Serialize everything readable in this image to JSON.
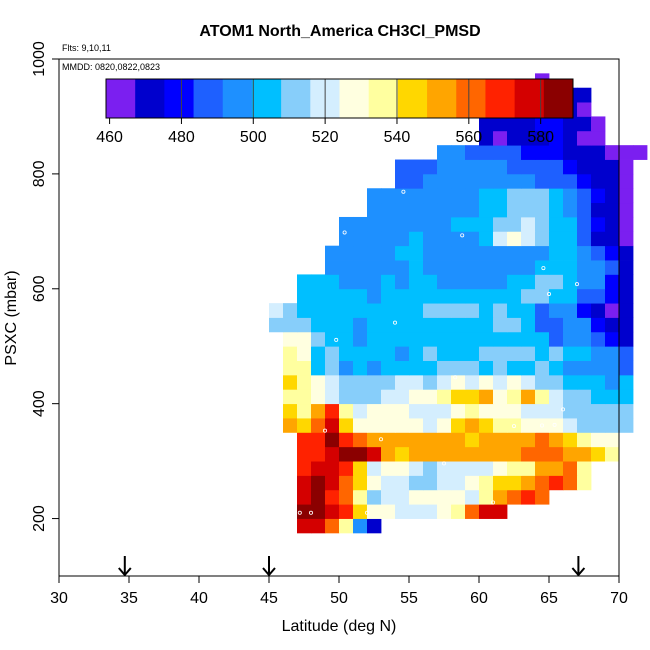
{
  "chart_data": {
    "type": "heatmap",
    "title": "ATOM1 North_America CH3Cl_PMSD",
    "flights_label": "Flts: 9,10,11",
    "dates_label": "MMDD: 0820,0822,0823",
    "xlabel": "Latitude (deg N)",
    "ylabel": "PSXC (mbar)",
    "xlim": [
      30,
      70
    ],
    "ylim": [
      1000,
      100
    ],
    "x_ticks": [
      30,
      35,
      40,
      45,
      50,
      55,
      60,
      65,
      70
    ],
    "y_ticks": [
      200,
      400,
      600,
      800,
      1000
    ],
    "colorbar": {
      "min": 459,
      "max": 589,
      "ticks": [
        460,
        480,
        500,
        520,
        540,
        560,
        580
      ],
      "boundaries": [
        480,
        500,
        520,
        540,
        560,
        580
      ],
      "colors": [
        "#7b1ff0",
        "#0000cd",
        "#0000ff",
        "#1e60ff",
        "#1e90ff",
        "#00bfff",
        "#87cefa",
        "#d4eefe",
        "#ffffe0",
        "#ffff9f",
        "#ffd700",
        "#ffa500",
        "#ff6600",
        "#ff2200",
        "#d40000",
        "#8b0000"
      ]
    },
    "arrows_latitude": [
      34.7,
      45.0,
      67.1
    ],
    "cell_lat_width": 1,
    "cell_p_height": 25,
    "rows": [
      {
        "p": 175,
        "lat0": 47,
        "values": [
          580,
          578,
          560,
          540,
          495,
          475
        ]
      },
      {
        "p": 200,
        "lat0": 47,
        "values": [
          585,
          584,
          580,
          565,
          548,
          530,
          525,
          522,
          520,
          517,
          528,
          535,
          558,
          575,
          580
        ]
      },
      {
        "p": 225,
        "lat0": 47,
        "values": [
          578,
          582,
          570,
          562,
          538,
          515,
          518,
          520,
          528,
          531,
          528,
          525,
          522,
          535,
          555,
          560,
          570,
          562
        ]
      },
      {
        "p": 250,
        "lat0": 47,
        "values": [
          574,
          586,
          580,
          560,
          545,
          528,
          522,
          519,
          514,
          510,
          517,
          520,
          525,
          540,
          545,
          548,
          550,
          560,
          566,
          560,
          535
        ]
      },
      {
        "p": 275,
        "lat0": 47,
        "values": [
          572,
          580,
          575,
          565,
          545,
          520,
          525,
          525,
          522,
          515,
          518,
          520,
          520,
          522,
          528,
          535,
          540,
          552,
          555,
          562,
          540
        ]
      },
      {
        "p": 300,
        "lat0": 47,
        "values": [
          572,
          572,
          580,
          587,
          583,
          575,
          555,
          545,
          552,
          550,
          550,
          550,
          550,
          555,
          552,
          556,
          558,
          559,
          560,
          555,
          551,
          543,
          535
        ]
      },
      {
        "p": 325,
        "lat0": 47,
        "values": [
          565,
          568,
          582,
          565,
          557,
          552,
          556,
          552,
          552,
          551,
          551,
          550,
          548,
          549,
          550,
          552,
          555,
          558,
          555,
          548,
          540,
          530,
          530
        ]
      },
      {
        "p": 350,
        "lat0": 46,
        "values": [
          550,
          548,
          560,
          578,
          545,
          525,
          528,
          532,
          530,
          525,
          522,
          532,
          545,
          550,
          545,
          535,
          535,
          530,
          530,
          528,
          522,
          515,
          512,
          510,
          515
        ]
      },
      {
        "p": 375,
        "lat0": 46,
        "values": [
          548,
          540,
          555,
          572,
          540,
          520,
          528,
          525,
          525,
          520,
          518,
          522,
          530,
          535,
          525,
          525,
          528,
          522,
          522,
          518,
          515,
          510,
          512,
          513,
          510
        ]
      },
      {
        "p": 400,
        "lat0": 46,
        "values": [
          540,
          535,
          528,
          522,
          515,
          512,
          515,
          520,
          520,
          525,
          528,
          535,
          545,
          545,
          555,
          530,
          538,
          552,
          535,
          520,
          512,
          508,
          505,
          500,
          505
        ]
      },
      {
        "p": 425,
        "lat0": 46,
        "values": [
          542,
          538,
          525,
          520,
          512,
          510,
          512,
          515,
          520,
          518,
          515,
          520,
          525,
          520,
          525,
          520,
          525,
          520,
          515,
          510,
          505,
          505,
          500,
          498,
          500
        ]
      },
      {
        "p": 450,
        "lat0": 46,
        "values": [
          540,
          535,
          505,
          510,
          495,
          505,
          498,
          505,
          500,
          505,
          500,
          510,
          515,
          512,
          505,
          510,
          505,
          505,
          508,
          500,
          498,
          495,
          492,
          495,
          490
        ]
      },
      {
        "p": 475,
        "lat0": 46,
        "values": [
          535,
          530,
          505,
          508,
          502,
          503,
          505,
          502,
          498,
          505,
          510,
          500,
          505,
          505,
          508,
          512,
          515,
          512,
          500,
          510,
          506,
          500,
          498,
          492,
          485
        ]
      },
      {
        "p": 500,
        "lat0": 46,
        "values": [
          530,
          525,
          510,
          505,
          500,
          498,
          502,
          502,
          500,
          500,
          505,
          503,
          500,
          505,
          506,
          507,
          505,
          505,
          500,
          488,
          495,
          498,
          490,
          478,
          470
        ]
      },
      {
        "p": 525,
        "lat0": 45,
        "values": [
          515,
          510,
          512,
          505,
          502,
          500,
          498,
          500,
          500,
          500,
          500,
          502,
          505,
          505,
          502,
          505,
          508,
          512,
          502,
          485,
          488,
          492,
          495,
          478,
          470,
          470
        ]
      },
      {
        "p": 550,
        "lat0": 45,
        "values": [
          518,
          512,
          505,
          505,
          502,
          502,
          500,
          502,
          500,
          502,
          505,
          508,
          512,
          510,
          508,
          507,
          508,
          505,
          505,
          490,
          498,
          495,
          480,
          470,
          465,
          468
        ]
      },
      {
        "p": 575,
        "lat0": 47,
        "values": [
          500,
          500,
          500,
          502,
          500,
          498,
          500,
          500,
          500,
          502,
          500,
          500,
          500,
          500,
          500,
          505,
          510,
          508,
          505,
          500,
          490,
          488,
          478,
          470
        ]
      },
      {
        "p": 600,
        "lat0": 47,
        "values": [
          500,
          500,
          500,
          498,
          495,
          498,
          500,
          498,
          500,
          500,
          498,
          495,
          495,
          495,
          498,
          500,
          505,
          508,
          515,
          505,
          498,
          495,
          480,
          475
        ]
      },
      {
        "p": 625,
        "lat0": 49,
        "values": [
          492,
          495,
          498,
          498,
          495,
          498,
          500,
          498,
          495,
          495,
          492,
          495,
          495,
          495,
          495,
          500,
          505,
          505,
          498,
          492,
          485,
          475
        ]
      },
      {
        "p": 650,
        "lat0": 49,
        "values": [
          492,
          495,
          495,
          495,
          498,
          500,
          500,
          498,
          495,
          495,
          495,
          495,
          495,
          492,
          492,
          498,
          500,
          500,
          492,
          485,
          478,
          475
        ]
      },
      {
        "p": 675,
        "lat0": 50,
        "values": [
          495,
          492,
          495,
          495,
          498,
          500,
          498,
          495,
          495,
          498,
          500,
          520,
          525,
          520,
          515,
          505,
          500,
          490,
          470,
          468,
          465
        ]
      },
      {
        "p": 700,
        "lat0": 50,
        "values": [
          495,
          495,
          495,
          498,
          498,
          498,
          495,
          495,
          500,
          500,
          502,
          510,
          515,
          520,
          512,
          502,
          500,
          490,
          478,
          472,
          465
        ]
      },
      {
        "p": 725,
        "lat0": 52,
        "values": [
          492,
          495,
          495,
          495,
          495,
          495,
          495,
          498,
          500,
          505,
          510,
          512,
          508,
          500,
          495,
          485,
          475,
          470,
          465
        ]
      },
      {
        "p": 750,
        "lat0": 52,
        "values": [
          492,
          492,
          495,
          495,
          495,
          492,
          495,
          495,
          500,
          505,
          508,
          510,
          508,
          500,
          495,
          485,
          478,
          472,
          465
        ]
      },
      {
        "p": 775,
        "lat0": 54,
        "values": [
          490,
          490,
          492,
          495,
          495,
          495,
          495,
          495,
          495,
          492,
          490,
          490,
          485,
          478,
          475,
          470,
          465
        ]
      },
      {
        "p": 800,
        "lat0": 54,
        "values": [
          490,
          490,
          490,
          492,
          495,
          495,
          495,
          492,
          490,
          490,
          488,
          485,
          480,
          475,
          470,
          468,
          465
        ]
      },
      {
        "p": 825,
        "lat0": 57,
        "values": [
          492,
          492,
          490,
          490,
          488,
          485,
          483,
          480,
          478,
          475,
          472,
          470,
          465,
          462,
          460
        ]
      },
      {
        "p": 850,
        "lat0": 60,
        "values": [
          468,
          465,
          468,
          472,
          475,
          478,
          473,
          467,
          460
        ]
      },
      {
        "p": 875,
        "lat0": 60,
        "values": [
          470,
          468,
          470,
          474,
          478,
          482,
          473,
          468,
          460
        ]
      },
      {
        "p": 900,
        "lat0": 62,
        "values": [
          470,
          468,
          470,
          470,
          468,
          466
        ]
      },
      {
        "p": 925,
        "lat0": 62,
        "values": [
          470,
          470,
          468,
          466,
          468,
          468
        ]
      },
      {
        "p": 950,
        "lat0": 64,
        "values": [
          461
        ]
      }
    ],
    "sample_markers": [
      {
        "lat": 47.2,
        "p": 210
      },
      {
        "lat": 48.0,
        "p": 210
      },
      {
        "lat": 52.0,
        "p": 210
      },
      {
        "lat": 61.0,
        "p": 228
      },
      {
        "lat": 57.5,
        "p": 296
      },
      {
        "lat": 53.0,
        "p": 338
      },
      {
        "lat": 49.0,
        "p": 353
      },
      {
        "lat": 62.5,
        "p": 361
      },
      {
        "lat": 64.5,
        "p": 362
      },
      {
        "lat": 65.4,
        "p": 363
      },
      {
        "lat": 66.0,
        "p": 390
      },
      {
        "lat": 58.3,
        "p": 446
      },
      {
        "lat": 49.8,
        "p": 511
      },
      {
        "lat": 54.0,
        "p": 541
      },
      {
        "lat": 65.0,
        "p": 591
      },
      {
        "lat": 67.0,
        "p": 608
      },
      {
        "lat": 64.6,
        "p": 636
      },
      {
        "lat": 58.8,
        "p": 693
      },
      {
        "lat": 50.4,
        "p": 698
      },
      {
        "lat": 54.6,
        "p": 769
      },
      {
        "lat": 64.4,
        "p": 951
      }
    ]
  }
}
